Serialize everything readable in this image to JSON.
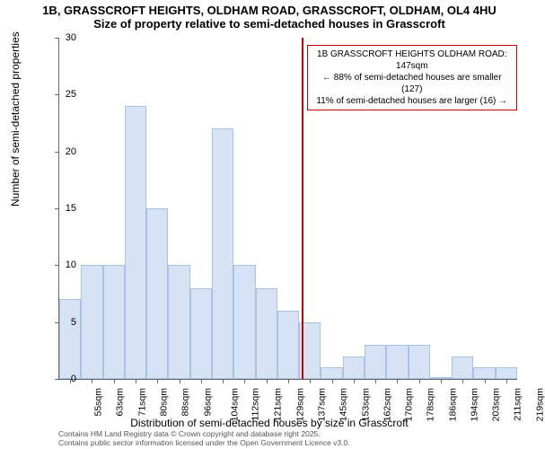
{
  "title": {
    "line1": "1B, GRASSCROFT HEIGHTS, OLDHAM ROAD, GRASSCROFT, OLDHAM, OL4 4HU",
    "line2": "Size of property relative to semi-detached houses in Grasscroft"
  },
  "chart": {
    "type": "histogram",
    "ylim": [
      0,
      30
    ],
    "ytick_step": 5,
    "yticks": [
      0,
      5,
      10,
      15,
      20,
      25,
      30
    ],
    "xlabels": [
      "55sqm",
      "63sqm",
      "71sqm",
      "80sqm",
      "88sqm",
      "96sqm",
      "104sqm",
      "112sqm",
      "121sqm",
      "129sqm",
      "137sqm",
      "145sqm",
      "153sqm",
      "162sqm",
      "170sqm",
      "178sqm",
      "186sqm",
      "194sqm",
      "203sqm",
      "211sqm",
      "219sqm"
    ],
    "values": [
      7,
      10,
      10,
      24,
      15,
      10,
      8,
      22,
      10,
      8,
      6,
      5,
      1,
      2,
      3,
      3,
      3,
      0,
      2,
      1,
      1
    ],
    "bar_fill": "#d5e3f5",
    "bar_stroke": "#a8c2e3",
    "background_color": "#ffffff",
    "axis_color": "#666666",
    "marker": {
      "x_index": 11.1,
      "color": "#cc0000"
    },
    "ylabel": "Number of semi-detached properties",
    "xlabel": "Distribution of semi-detached houses by size in Grasscroft"
  },
  "annotation": {
    "line1": "1B GRASSCROFT HEIGHTS OLDHAM ROAD: 147sqm",
    "line2": "← 88% of semi-detached houses are smaller (127)",
    "line3": "11% of semi-detached houses are larger (16) →"
  },
  "footer": {
    "line1": "Contains HM Land Registry data © Crown copyright and database right 2025.",
    "line2": "Contains public sector information licensed under the Open Government Licence v3.0."
  }
}
